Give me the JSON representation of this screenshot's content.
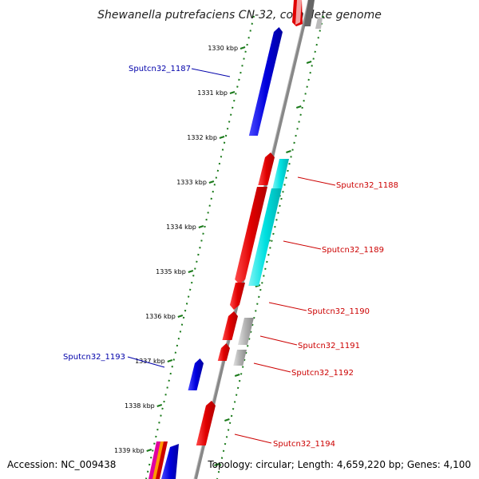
{
  "title": "Shewanella putrefaciens CN-32, complete genome",
  "footer": {
    "accession": "Accession: NC_009438",
    "summary": "Topology: circular; Length: 4,659,220 bp; Genes: 4,100"
  },
  "colors": {
    "forward_gene": "#e00000",
    "reverse_gene": "#0000dd",
    "cyan_feature": "#00e0e0",
    "gray_feature": "#b0b0b0",
    "backbone": "#888888",
    "tick": "#1a7a1a",
    "forward_label": "#cc0000",
    "reverse_label": "#0000aa"
  },
  "tick_labels": [
    "1330 kbp",
    "1331 kbp",
    "1332 kbp",
    "1333 kbp",
    "1334 kbp",
    "1335 kbp",
    "1336 kbp",
    "1337 kbp",
    "1338 kbp",
    "1339 kbp"
  ],
  "gene_labels": {
    "forward": [
      "Sputcn32_1188",
      "Sputcn32_1189",
      "Sputcn32_1190",
      "Sputcn32_1191",
      "Sputcn32_1192",
      "Sputcn32_1194"
    ],
    "reverse": [
      "Sputcn32_1187",
      "Sputcn32_1193"
    ]
  }
}
